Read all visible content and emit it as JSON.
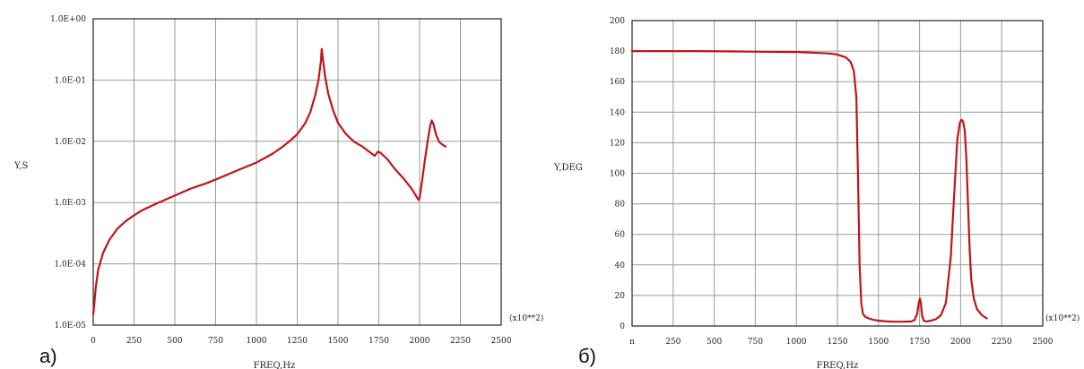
{
  "chart_data": [
    {
      "type": "line",
      "panel_label": "а)",
      "xlabel": "FREQ,Hz",
      "ylabel": "Y,S",
      "x_multiplier": "(x10**2)",
      "xscale": "linear",
      "yscale": "log",
      "xlim": [
        0,
        2500
      ],
      "ylim": [
        1e-05,
        1
      ],
      "grid": true,
      "x_ticks": [
        "0",
        "250",
        "500",
        "750",
        "1000",
        "1250",
        "1500",
        "1750",
        "2000",
        "2250",
        "2500"
      ],
      "y_ticks": [
        "1.0E+00",
        "1.0E-01",
        "1.0E-02",
        "1.0E-03",
        "1.0E-04",
        "1.0E-05"
      ],
      "series": [
        {
          "color": "#c0141c",
          "x": [
            0,
            5,
            15,
            30,
            60,
            100,
            150,
            200,
            250,
            300,
            400,
            500,
            600,
            700,
            800,
            900,
            1000,
            1100,
            1150,
            1200,
            1250,
            1300,
            1330,
            1360,
            1380,
            1395,
            1400,
            1405,
            1420,
            1440,
            1470,
            1500,
            1550,
            1600,
            1650,
            1700,
            1725,
            1745,
            1760,
            1780,
            1800,
            1850,
            1900,
            1950,
            1970,
            1985,
            1995,
            2000,
            2010,
            2030,
            2050,
            2065,
            2075,
            2085,
            2100,
            2120,
            2140,
            2160
          ],
          "y": [
            1.5e-05,
            2e-05,
            4e-05,
            8e-05,
            0.00015,
            0.00025,
            0.00038,
            0.0005,
            0.00062,
            0.00075,
            0.001,
            0.0013,
            0.0017,
            0.0021,
            0.0027,
            0.0035,
            0.0045,
            0.0063,
            0.0078,
            0.0099,
            0.013,
            0.02,
            0.03,
            0.056,
            0.1,
            0.2,
            0.32,
            0.25,
            0.12,
            0.06,
            0.032,
            0.02,
            0.013,
            0.0098,
            0.0082,
            0.0065,
            0.0058,
            0.0068,
            0.0065,
            0.0058,
            0.0052,
            0.0035,
            0.0025,
            0.0017,
            0.0014,
            0.0012,
            0.0011,
            0.0012,
            0.0018,
            0.0045,
            0.0105,
            0.018,
            0.022,
            0.019,
            0.013,
            0.0098,
            0.0088,
            0.0082
          ]
        }
      ]
    },
    {
      "type": "line",
      "panel_label": "б)",
      "xlabel": "FREQ,Hz",
      "ylabel": "Y,DEG",
      "x_multiplier": "(x10**2)",
      "xscale": "linear",
      "yscale": "linear",
      "xlim": [
        0,
        2500
      ],
      "ylim": [
        0,
        200
      ],
      "grid": true,
      "x_ticks": [
        "n",
        "250",
        "500",
        "750",
        "1000",
        "1250",
        "1500",
        "1750",
        "2000",
        "2250",
        "2500"
      ],
      "y_ticks": [
        "0",
        "20",
        "40",
        "60",
        "80",
        "100",
        "120",
        "140",
        "160",
        "180",
        "200"
      ],
      "series": [
        {
          "color": "#c0141c",
          "x": [
            0,
            200,
            400,
            600,
            800,
            1000,
            1100,
            1200,
            1250,
            1300,
            1330,
            1350,
            1365,
            1375,
            1385,
            1395,
            1405,
            1420,
            1440,
            1470,
            1500,
            1550,
            1600,
            1650,
            1700,
            1720,
            1735,
            1745,
            1752,
            1758,
            1765,
            1775,
            1790,
            1820,
            1850,
            1880,
            1910,
            1940,
            1960,
            1980,
            1995,
            2005,
            2015,
            2025,
            2035,
            2045,
            2055,
            2065,
            2080,
            2100,
            2130,
            2160
          ],
          "y": [
            180,
            180,
            180,
            179.8,
            179.6,
            179.4,
            179,
            178.5,
            177.8,
            176,
            173,
            167,
            150,
            100,
            40,
            15,
            8,
            6,
            5,
            4,
            3.5,
            3,
            2.8,
            2.8,
            3,
            4,
            8,
            15,
            18,
            15,
            7,
            3.5,
            3,
            3.5,
            4.5,
            7,
            15,
            45,
            85,
            122,
            133,
            135,
            134,
            128,
            110,
            80,
            50,
            30,
            18,
            11,
            7,
            5
          ]
        }
      ]
    }
  ]
}
